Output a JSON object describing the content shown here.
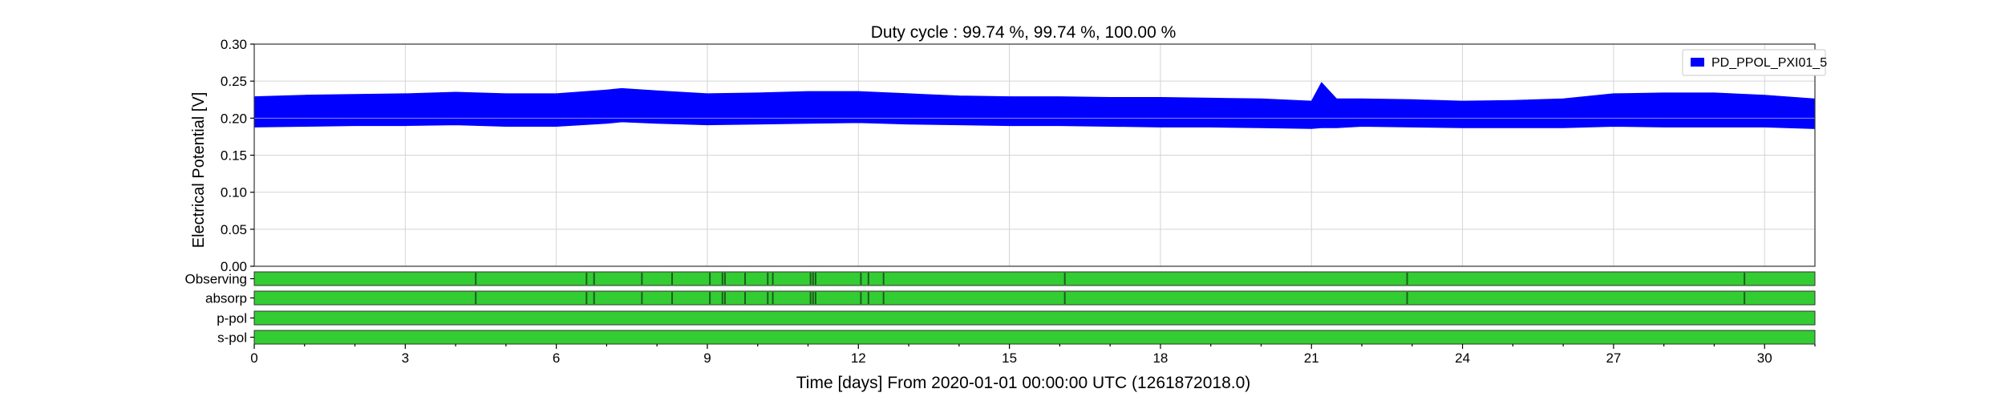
{
  "chart_data": [
    {
      "type": "area",
      "title": "Duty cycle : 99.74 %, 99.74 %, 100.00 %",
      "ylabel": "Electrical Potential [V]",
      "xlim": [
        0,
        31
      ],
      "ylim": [
        0,
        0.3
      ],
      "yticks": [
        0.0,
        0.05,
        0.1,
        0.15,
        0.2,
        0.25,
        0.3
      ],
      "ytick_labels": [
        "0.00",
        "0.05",
        "0.10",
        "0.15",
        "0.20",
        "0.25",
        "0.30"
      ],
      "grid": true,
      "legend_position": "top-right",
      "series": [
        {
          "name": "PD_PPOL_PXI01_5",
          "color": "#0000ff",
          "x": [
            0,
            1,
            2,
            3,
            4,
            5,
            6,
            7,
            7.3,
            8,
            9,
            10,
            11,
            12,
            13,
            14,
            15,
            16,
            17,
            18,
            19,
            20,
            21,
            21.2,
            21.5,
            22,
            23,
            24,
            25,
            26,
            27,
            28,
            29,
            30,
            31
          ],
          "y_max": [
            0.229,
            0.231,
            0.232,
            0.233,
            0.235,
            0.233,
            0.233,
            0.238,
            0.24,
            0.237,
            0.233,
            0.234,
            0.236,
            0.236,
            0.233,
            0.23,
            0.229,
            0.229,
            0.228,
            0.228,
            0.227,
            0.226,
            0.223,
            0.248,
            0.226,
            0.226,
            0.225,
            0.223,
            0.224,
            0.226,
            0.233,
            0.234,
            0.234,
            0.231,
            0.226
          ],
          "y_min": [
            0.188,
            0.189,
            0.19,
            0.19,
            0.191,
            0.189,
            0.189,
            0.193,
            0.195,
            0.193,
            0.191,
            0.192,
            0.193,
            0.194,
            0.192,
            0.191,
            0.19,
            0.19,
            0.189,
            0.188,
            0.188,
            0.187,
            0.186,
            0.187,
            0.187,
            0.189,
            0.188,
            0.187,
            0.187,
            0.187,
            0.189,
            0.188,
            0.188,
            0.188,
            0.186
          ]
        }
      ]
    },
    {
      "type": "bar",
      "xlabel": "Time [days] From 2020-01-01 00:00:00 UTC (1261872018.0)",
      "xlim": [
        0,
        31
      ],
      "xticks": [
        0,
        3,
        6,
        9,
        12,
        15,
        18,
        21,
        24,
        27,
        30
      ],
      "xtick_labels": [
        "0",
        "3",
        "6",
        "9",
        "12",
        "15",
        "18",
        "21",
        "24",
        "27",
        "30"
      ],
      "flag_color": "#33cc33",
      "gap_color": "#1c5e1c",
      "segments": [
        {
          "name": "Observing",
          "gaps": [
            4.4,
            6.6,
            6.75,
            7.7,
            8.3,
            9.05,
            9.3,
            9.35,
            9.75,
            10.2,
            10.3,
            11.05,
            11.1,
            11.15,
            12.05,
            12.2,
            12.5,
            16.1,
            22.9,
            29.6
          ]
        },
        {
          "name": "absorp",
          "gaps": [
            4.4,
            6.6,
            6.75,
            7.7,
            8.3,
            9.05,
            9.3,
            9.35,
            9.75,
            10.2,
            10.3,
            11.05,
            11.1,
            11.15,
            12.05,
            12.2,
            12.5,
            16.1,
            22.9,
            29.6
          ]
        },
        {
          "name": "p-pol",
          "gaps": []
        },
        {
          "name": "s-pol",
          "gaps": []
        }
      ]
    }
  ]
}
